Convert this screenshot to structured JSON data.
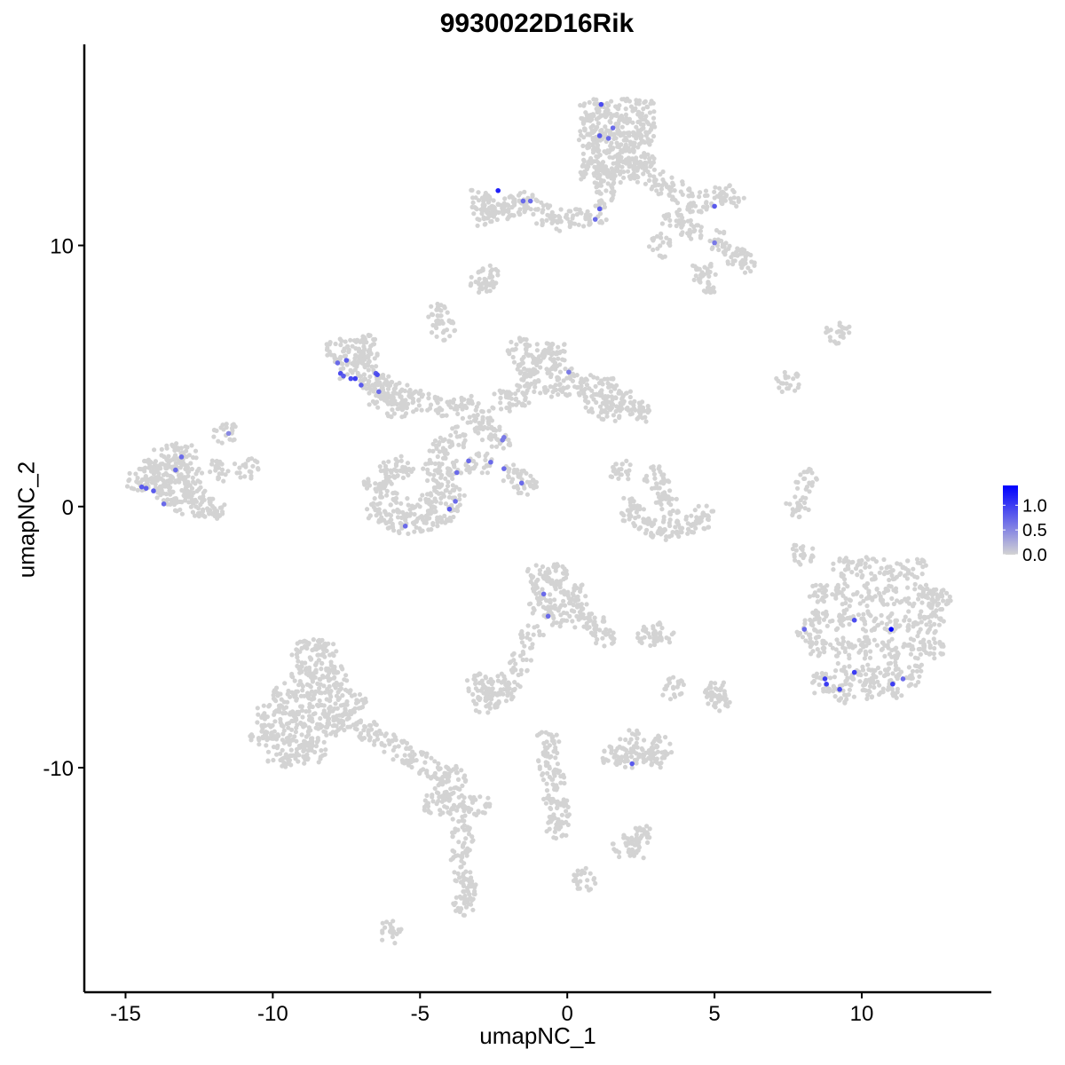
{
  "chart_data": {
    "type": "scatter",
    "title": "9930022D16Rik",
    "xlabel": "umapNC_1",
    "ylabel": "umapNC_2",
    "xlim": [
      -16.4,
      14.4
    ],
    "ylim": [
      -18.6,
      17.7
    ],
    "xticks": [
      -15,
      -10,
      -5,
      0,
      5,
      10
    ],
    "yticks": [
      -10,
      0,
      10
    ],
    "xtick_labels": [
      "-15",
      "-10",
      "-5",
      "0",
      "5",
      "10"
    ],
    "ytick_labels": [
      "-10",
      "0",
      "10"
    ],
    "grid": false,
    "legend": {
      "placement": "right",
      "type": "colorbar",
      "range": [
        0,
        1.4
      ],
      "ticks": [
        0.0,
        0.5,
        1.0
      ],
      "tick_labels": [
        "0.0",
        "0.5",
        "1.0"
      ],
      "low_color": "#d3d3d3",
      "high_color": "#0000ff"
    },
    "background_cells_note_value": 0,
    "background_cells": {
      "x": [
        0.8,
        1.4,
        2.0,
        2.6,
        0.8,
        1.4,
        2.0,
        2.6,
        0.8,
        1.4,
        2.0,
        2.6,
        0.8,
        1.4,
        2.0,
        2.6,
        0.8,
        1.4,
        2.0,
        2.6,
        3.2,
        3.8,
        4.4,
        5.0,
        5.6,
        3.6,
        4.2,
        5.2,
        5.6,
        6.0,
        4.6,
        4.8,
        -3.0,
        -2.6,
        -2.2,
        -2.8,
        -1.8,
        -1.4,
        -0.8,
        -0.2,
        0.4,
        1.0,
        1.2,
        1.3,
        -2.7,
        -4.4,
        -4.2,
        3.2,
        9.2,
        7.5,
        8.1,
        7.8,
        8.0,
        -2.9,
        -1.6,
        -1.0,
        -0.4,
        -1.4,
        -0.8,
        -0.2,
        -1.2,
        -0.6,
        0.2,
        0.8,
        1.4,
        1.0,
        1.6,
        2.2,
        1.4,
        2.4,
        -1.6,
        -2.2,
        -3.4,
        -4.2,
        -5.0,
        -5.6,
        -6.2,
        -3.0,
        -2.8,
        -3.8,
        -4.3,
        -2.3,
        -7.8,
        -7.2,
        -6.8,
        -7.6,
        -7.0,
        -6.6,
        -6.4,
        -5.8,
        -6.0,
        -6.9,
        -14.6,
        -14.2,
        -13.8,
        -13.4,
        -13.0,
        -14.0,
        -13.6,
        -13.2,
        -12.8,
        -13.6,
        -13.2,
        -12.6,
        -12.4,
        -12.0,
        -13.0,
        -11.6,
        -10.9,
        -11.8,
        -6.5,
        -6.2,
        -6.4,
        -5.8,
        -5.2,
        -4.6,
        -4.1,
        -3.9,
        -4.2,
        -5.6,
        -4.8,
        -6.0,
        -5.6,
        -4.6,
        -3.7,
        -1.8,
        -1.4,
        -2.9,
        3.0,
        3.2,
        3.4,
        2.4,
        2.9,
        3.5,
        4.1,
        4.6,
        2.0,
        1.8,
        9.4,
        10.2,
        11.0,
        11.8,
        8.6,
        9.4,
        10.2,
        11.0,
        11.8,
        12.4,
        8.6,
        9.4,
        10.2,
        11.0,
        11.8,
        12.4,
        8.6,
        9.4,
        10.2,
        11.0,
        11.8,
        12.4,
        9.4,
        10.2,
        11.0,
        11.8,
        8.2,
        8.6,
        9.4,
        10.4,
        11.2,
        12.6,
        -1.0,
        -0.4,
        -0.8,
        -0.2,
        0.4,
        -0.9,
        -0.3,
        0.4,
        0.9,
        1.2,
        -1.2,
        -1.6,
        2.8,
        3.2,
        -3.0,
        -2.4,
        -2.6,
        -2.8,
        -2.0,
        3.6,
        5.0,
        5.1,
        -9.0,
        -8.6,
        -8.2,
        -9.0,
        -8.4,
        -7.8,
        -9.6,
        -9.0,
        -8.4,
        -7.8,
        -7.2,
        -10.2,
        -9.6,
        -9.0,
        -8.4,
        -7.8,
        -10.4,
        -9.8,
        -9.2,
        -8.6,
        -8.0,
        -9.8,
        -9.2,
        -8.6,
        -7.4,
        -6.8,
        -6.2,
        -5.6,
        -5.0,
        -4.4,
        -3.8,
        -4.2,
        -3.9,
        -3.7,
        -3.5,
        -3.6,
        -3.5,
        -3.3,
        -3.5,
        -6.0,
        -4.5,
        -3.0,
        1.6,
        2.0,
        2.6,
        3.0,
        3.2,
        2.2,
        1.9,
        2.4,
        2.5,
        0.6,
        -0.7,
        -0.6,
        -0.5,
        -0.4,
        -0.2,
        -0.3
      ],
      "y": [
        15.2,
        15.2,
        15.2,
        15.2,
        14.6,
        14.6,
        14.6,
        14.6,
        14.0,
        14.0,
        14.0,
        14.0,
        13.4,
        13.4,
        13.4,
        13.4,
        12.8,
        12.8,
        12.8,
        12.8,
        12.4,
        12.0,
        11.6,
        11.8,
        11.9,
        11.0,
        10.5,
        10.2,
        9.6,
        9.4,
        9.0,
        8.6,
        11.8,
        11.5,
        11.2,
        11.1,
        11.6,
        11.6,
        11.2,
        11.0,
        11.0,
        11.2,
        12.0,
        12.6,
        8.8,
        7.4,
        6.8,
        10.0,
        6.7,
        4.8,
        1.0,
        0.0,
        -1.8,
        8.6,
        6.0,
        6.0,
        6.0,
        5.4,
        5.4,
        5.2,
        4.8,
        4.6,
        4.6,
        4.6,
        4.6,
        4.0,
        4.0,
        4.0,
        3.6,
        3.6,
        4.2,
        4.0,
        3.8,
        3.9,
        4.0,
        4.3,
        4.6,
        3.4,
        3.0,
        2.6,
        2.2,
        2.6,
        6.0,
        6.0,
        5.6,
        5.3,
        5.2,
        4.8,
        4.2,
        3.8,
        4.4,
        6.2,
        1.0,
        1.4,
        1.8,
        2.0,
        2.0,
        0.8,
        1.2,
        1.4,
        1.2,
        0.4,
        0.6,
        0.6,
        0.0,
        -0.1,
        0.1,
        2.8,
        1.5,
        1.4,
        1.0,
        0.4,
        -0.2,
        -0.6,
        -0.7,
        -0.5,
        -0.2,
        0.4,
        0.9,
        0.0,
        0.1,
        1.3,
        1.5,
        1.4,
        1.3,
        1.2,
        0.8,
        1.7,
        1.2,
        0.6,
        0.0,
        -0.4,
        -0.8,
        -0.9,
        -0.7,
        -0.4,
        -0.1,
        1.4,
        -2.4,
        -2.4,
        -2.4,
        -2.4,
        -3.4,
        -3.4,
        -3.4,
        -3.4,
        -3.4,
        -3.4,
        -4.4,
        -4.4,
        -4.4,
        -4.4,
        -4.4,
        -4.4,
        -5.4,
        -5.4,
        -5.4,
        -5.4,
        -5.4,
        -5.4,
        -6.4,
        -6.4,
        -6.4,
        -6.4,
        -4.8,
        -6.8,
        -7.1,
        -7.0,
        -6.9,
        -3.6,
        -2.6,
        -2.6,
        -3.2,
        -3.4,
        -3.4,
        -3.8,
        -4.2,
        -4.2,
        -4.5,
        -5.0,
        -5.0,
        -6.0,
        -5.0,
        -4.9,
        -6.8,
        -6.8,
        -7.2,
        -7.6,
        -7.0,
        -7.0,
        -7.0,
        -7.5,
        -5.6,
        -5.4,
        -5.6,
        -6.4,
        -6.4,
        -6.4,
        -7.2,
        -7.2,
        -7.2,
        -7.2,
        -7.4,
        -8.0,
        -8.0,
        -8.0,
        -8.0,
        -8.0,
        -8.8,
        -8.8,
        -8.8,
        -8.8,
        -8.4,
        -9.6,
        -9.6,
        -9.4,
        -8.2,
        -8.6,
        -9.0,
        -9.4,
        -9.8,
        -10.2,
        -10.4,
        -10.8,
        -11.2,
        -11.8,
        -12.6,
        -13.4,
        -14.2,
        -14.8,
        -15.2,
        -16.3,
        -11.4,
        -11.4,
        -9.6,
        -9.6,
        -9.6,
        -9.6,
        -9.2,
        -9.0,
        -13.0,
        -13.1,
        -12.6,
        -14.3,
        -9.0,
        -9.8,
        -10.5,
        -11.2,
        -11.8,
        -12.3
      ]
    },
    "expressing_cells": {
      "x": [
        1.15,
        1.55,
        1.1,
        1.4,
        -2.35,
        -1.5,
        -1.25,
        1.1,
        0.95,
        5.0,
        5.0,
        -7.8,
        -7.5,
        -7.7,
        -7.6,
        -7.35,
        -7.2,
        -7.0,
        -6.5,
        -6.45,
        -6.4,
        0.05,
        -11.5,
        -13.1,
        -13.3,
        -14.45,
        -14.3,
        -14.05,
        -13.7,
        -2.2,
        -2.15,
        -3.35,
        -2.6,
        -2.15,
        -1.55,
        -3.75,
        -3.8,
        -4.0,
        -5.5,
        -0.8,
        -0.65,
        8.05,
        9.75,
        11.0,
        8.75,
        8.8,
        9.25,
        9.75,
        11.05,
        11.4,
        2.2
      ],
      "y": [
        15.4,
        14.5,
        14.2,
        14.1,
        12.1,
        11.7,
        11.7,
        11.4,
        11.0,
        11.5,
        10.1,
        5.5,
        5.6,
        5.1,
        5.0,
        4.9,
        4.9,
        4.65,
        5.1,
        5.05,
        4.4,
        5.15,
        2.8,
        1.9,
        1.4,
        0.75,
        0.7,
        0.6,
        0.1,
        2.55,
        2.65,
        1.75,
        1.7,
        1.45,
        0.9,
        1.3,
        0.2,
        -0.1,
        -0.75,
        -3.35,
        -4.2,
        -4.7,
        -4.35,
        -4.7,
        -6.6,
        -6.8,
        -7.0,
        -6.35,
        -6.8,
        -6.6,
        -9.85
      ],
      "values": [
        0.9,
        0.7,
        0.8,
        0.7,
        1.2,
        0.7,
        0.7,
        0.8,
        0.7,
        0.8,
        0.6,
        0.7,
        0.8,
        0.9,
        0.8,
        0.9,
        1.0,
        0.8,
        0.8,
        0.9,
        0.7,
        0.6,
        0.5,
        0.7,
        0.7,
        0.8,
        0.8,
        0.8,
        0.7,
        0.6,
        0.6,
        0.7,
        0.7,
        0.7,
        0.7,
        0.7,
        0.7,
        0.8,
        0.7,
        0.7,
        0.7,
        0.7,
        0.9,
        1.4,
        1.0,
        1.0,
        0.9,
        1.0,
        1.0,
        0.7,
        0.8
      ]
    }
  }
}
